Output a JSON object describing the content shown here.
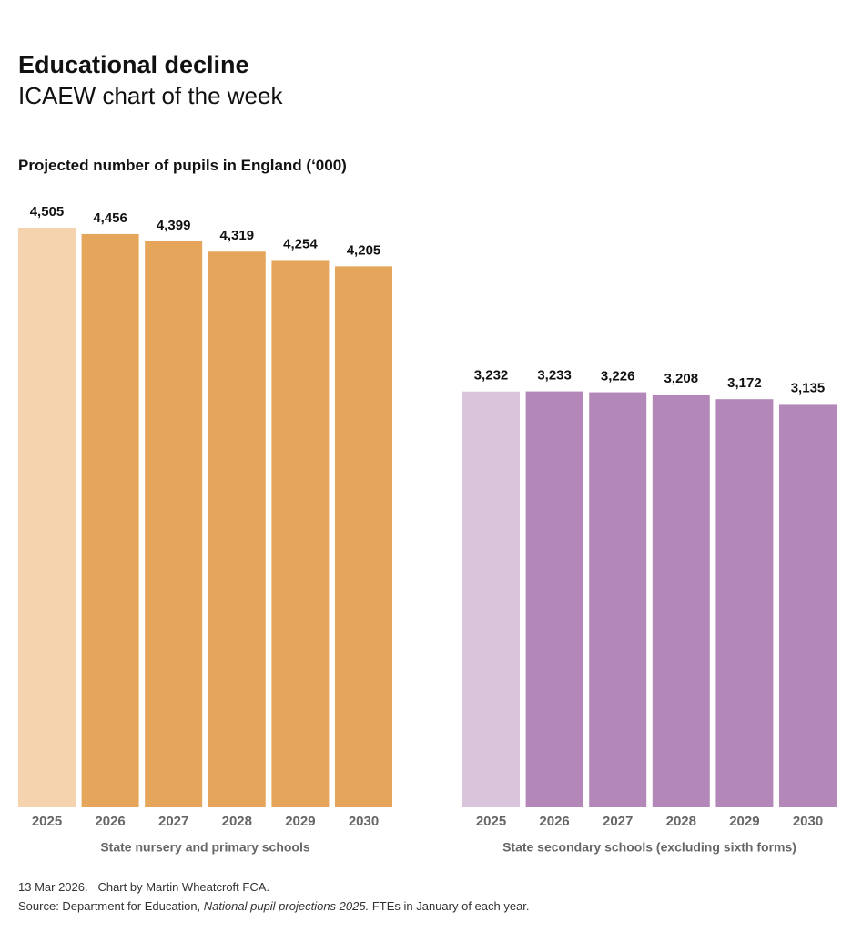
{
  "title": "Educational decline",
  "subtitle": "ICAEW chart of the week",
  "chart_title": "Projected number of pupils in England (‘000)",
  "footer": {
    "date": "13 Mar 2026.",
    "credit": "Chart by Martin Wheatcroft FCA.",
    "source": [
      "Source: Department for Education,",
      "National pupil projections 2025.",
      "FTEs in January of each year."
    ]
  },
  "chart_data": [
    {
      "type": "bar",
      "x_label": "State nursery and primary schools",
      "categories": [
        "2025",
        "2026",
        "2027",
        "2028",
        "2029",
        "2030"
      ],
      "values": [
        4505,
        4456,
        4399,
        4319,
        4254,
        4205
      ],
      "value_labels": [
        "4,505",
        "4,456",
        "4,399",
        "4,319",
        "4,254",
        "4,205"
      ],
      "colors": [
        "#f4d3ae",
        "#e5a65c",
        "#e5a65c",
        "#e5a65c",
        "#e5a65c",
        "#e5a65c"
      ]
    },
    {
      "type": "bar",
      "x_label": "State secondary schools (excluding sixth forms)",
      "categories": [
        "2025",
        "2026",
        "2027",
        "2028",
        "2029",
        "2030"
      ],
      "values": [
        3232,
        3233,
        3226,
        3208,
        3172,
        3135
      ],
      "value_labels": [
        "3,232",
        "3,233",
        "3,226",
        "3,208",
        "3,172",
        "3,135"
      ],
      "colors": [
        "#dac4dc",
        "#b388b9",
        "#b388b9",
        "#b388b9",
        "#b388b9",
        "#b388b9"
      ]
    }
  ]
}
